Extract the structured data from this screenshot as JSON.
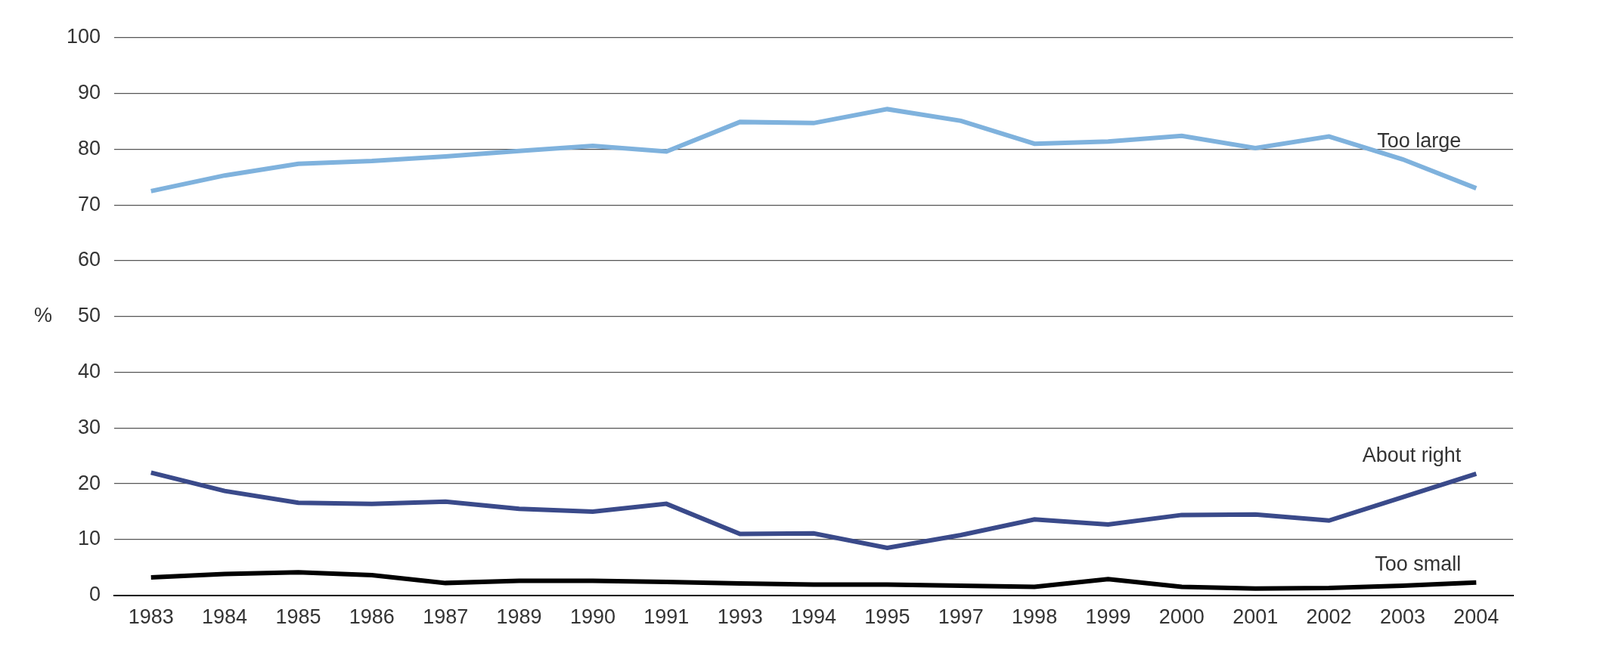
{
  "chart_data": {
    "type": "line",
    "y_label": "%",
    "categories": [
      "1983",
      "1984",
      "1985",
      "1986",
      "1987",
      "1989",
      "1990",
      "1991",
      "1993",
      "1994",
      "1995",
      "1997",
      "1998",
      "1999",
      "2000",
      "2001",
      "2002",
      "2003",
      "2004"
    ],
    "series": [
      {
        "name": "Too large",
        "color": "#7fb2dd",
        "values": [
          72.5,
          75.3,
          77.4,
          77.9,
          78.7,
          79.7,
          80.6,
          79.6,
          84.9,
          84.7,
          87.2,
          85.1,
          81.0,
          81.4,
          82.4,
          80.2,
          82.3,
          78.2,
          73.0
        ]
      },
      {
        "name": "About right",
        "color": "#3a4a8a",
        "values": [
          22.0,
          18.7,
          16.6,
          16.4,
          16.8,
          15.5,
          15.0,
          16.4,
          11.0,
          11.1,
          8.5,
          10.8,
          13.6,
          12.7,
          14.4,
          14.5,
          13.4,
          17.6,
          21.8
        ]
      },
      {
        "name": "Too small",
        "color": "#000000",
        "values": [
          3.2,
          3.8,
          4.1,
          3.6,
          2.2,
          2.6,
          2.6,
          2.4,
          2.1,
          1.9,
          1.9,
          1.7,
          1.5,
          2.9,
          1.5,
          1.2,
          1.3,
          1.7,
          2.3
        ]
      }
    ],
    "ylim": [
      0,
      100
    ],
    "yticks": [
      0,
      10,
      20,
      30,
      40,
      50,
      60,
      70,
      80,
      90,
      100
    ],
    "grid": true
  }
}
